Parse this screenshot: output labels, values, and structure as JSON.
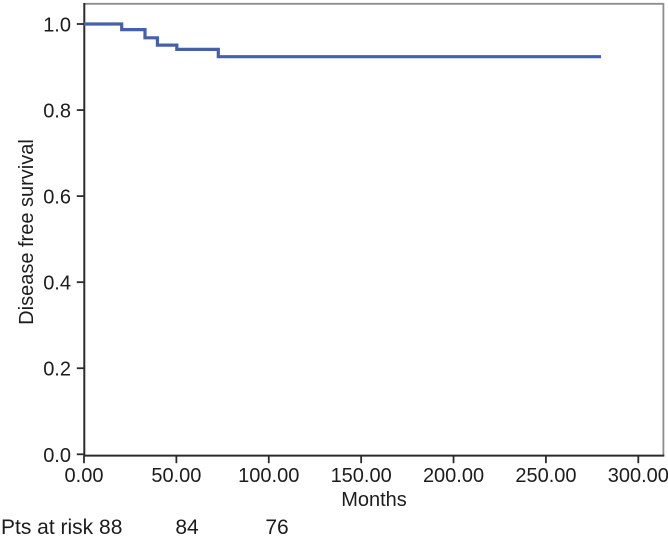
{
  "chart_data": {
    "type": "line",
    "subtype": "kaplan-meier-step",
    "title": "",
    "xlabel": "Months",
    "ylabel": "Disease free survival",
    "xlim": [
      0,
      314
    ],
    "ylim": [
      0,
      1.05
    ],
    "grid": false,
    "legend": "none",
    "line_color": "#4560a8",
    "axis_color": "#2b2b2b",
    "frame_color": "#8d8d8d",
    "x_ticks": {
      "values": [
        0,
        50,
        100,
        150,
        200,
        250,
        300
      ],
      "labels": [
        "0.00",
        "50.00",
        "100.00",
        "150.00",
        "200.00",
        "250.00",
        "300.00"
      ]
    },
    "y_ticks": {
      "values": [
        0.0,
        0.2,
        0.4,
        0.6,
        0.8,
        1.0
      ],
      "labels": [
        "0.0",
        "0.2",
        "0.4",
        "0.6",
        "0.8",
        "1.0"
      ]
    },
    "series": [
      {
        "name": "Disease free survival",
        "x": [
          0,
          20.4,
          20.4,
          33.0,
          33.0,
          39.7,
          39.7,
          50.2,
          50.2,
          72.7,
          72.7,
          279.8
        ],
        "y": [
          1.0,
          1.0,
          0.987,
          0.987,
          0.968,
          0.968,
          0.951,
          0.951,
          0.941,
          0.941,
          0.924,
          0.924
        ]
      }
    ],
    "events_summary": {
      "start_survival": 1.0,
      "final_survival": 0.92,
      "drop_times_months": [
        20.4,
        33.0,
        39.7,
        50.2,
        72.7
      ],
      "followup_end_months": 279.8
    }
  },
  "risk_row": {
    "prefix_with_first_count": "Pts at risk 88",
    "counts": [
      "88",
      "84",
      "76"
    ],
    "count_2": "84",
    "count_3": "76"
  }
}
